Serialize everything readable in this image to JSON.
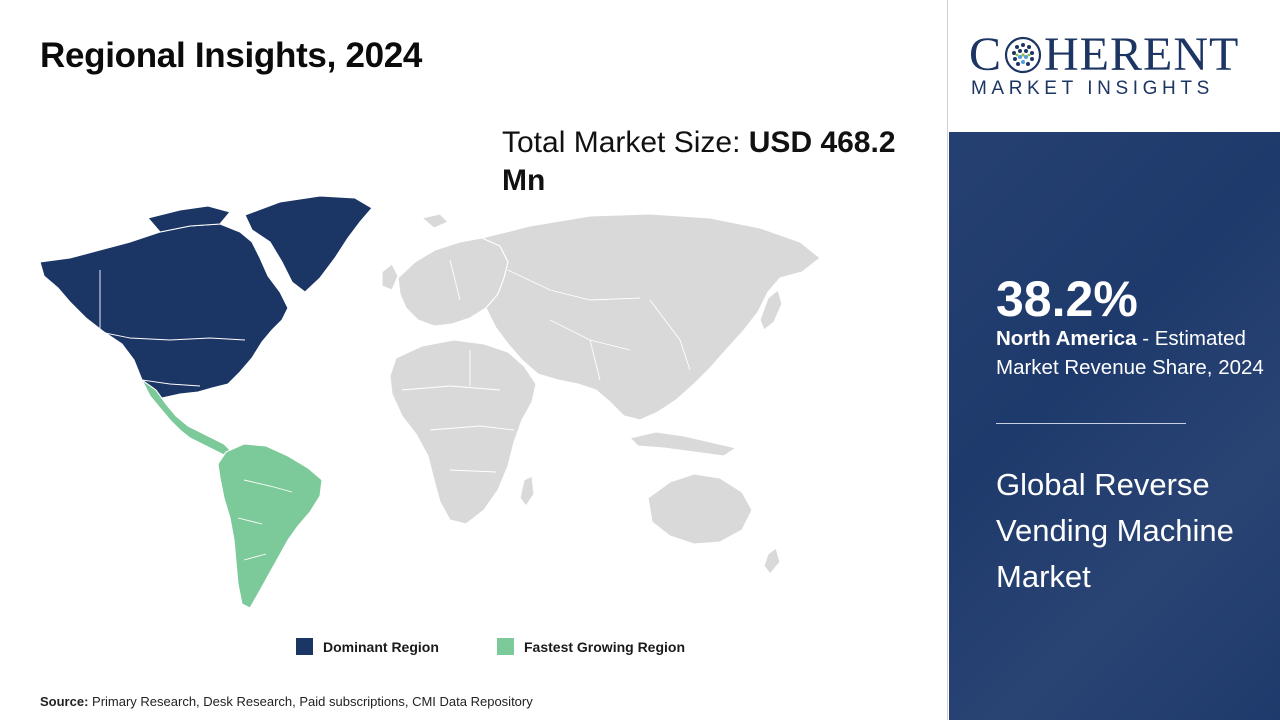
{
  "title": "Regional Insights, 2024",
  "market_size": {
    "label": "Total Market Size:",
    "value": "USD 468.2 Mn"
  },
  "legend": {
    "dominant": {
      "label": "Dominant Region",
      "color": "#1b3564"
    },
    "fastest": {
      "label": "Fastest Growing Region",
      "color": "#7cc99a"
    }
  },
  "map": {
    "base_color": "#d9d9d9",
    "dominant_region": "North America",
    "fastest_growing_region": "Latin America"
  },
  "source": {
    "label": "Source:",
    "text": "Primary Research, Desk Research, Paid subscriptions, CMI Data Repository"
  },
  "logo": {
    "word_left": "C",
    "word_right": "HERENT",
    "subtitle": "MARKET INSIGHTS",
    "icon": "dotted-globe-icon"
  },
  "highlight": {
    "share": "38.2%",
    "region": "North America",
    "description": " - Estimated Market Revenue Share, 2024"
  },
  "market_name": "Global Reverse Vending Machine Market",
  "colors": {
    "panel_blue": "#1e3a6c",
    "brand_navy": "#1d3563"
  }
}
